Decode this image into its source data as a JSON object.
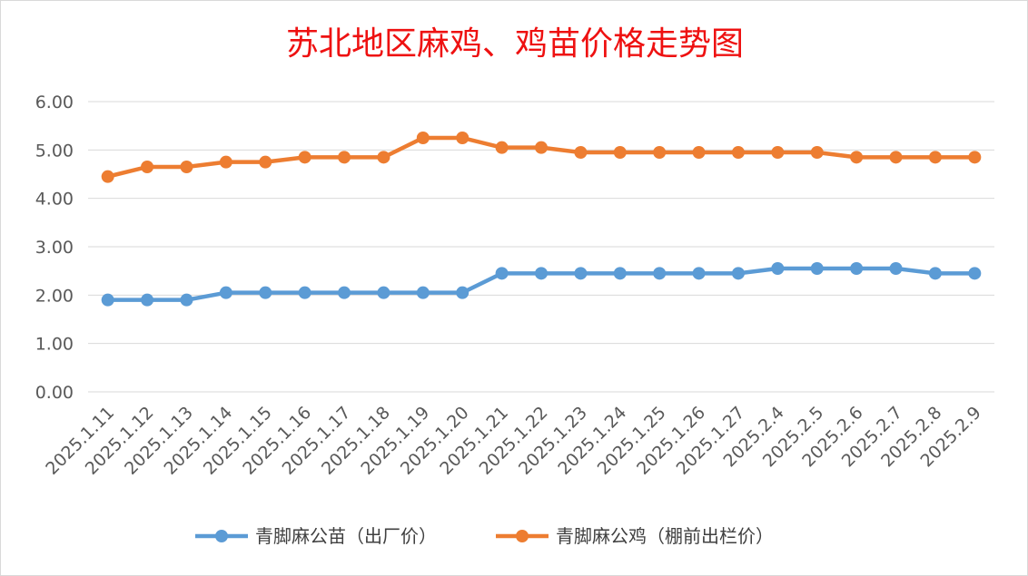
{
  "chart_data": {
    "type": "line",
    "title": "苏北地区麻鸡、鸡苗价格走势图",
    "categories": [
      "2025.1.11",
      "2025.1.12",
      "2025.1.13",
      "2025.1.14",
      "2025.1.15",
      "2025.1.16",
      "2025.1.17",
      "2025.1.18",
      "2025.1.19",
      "2025.1.20",
      "2025.1.21",
      "2025.1.22",
      "2025.1.23",
      "2025.1.24",
      "2025.1.25",
      "2025.1.26",
      "2025.1.27",
      "2025.2.4",
      "2025.2.5",
      "2025.2.6",
      "2025.2.7",
      "2025.2.8",
      "2025.2.9"
    ],
    "y_ticks": [
      "0.00",
      "1.00",
      "2.00",
      "3.00",
      "4.00",
      "5.00",
      "6.00"
    ],
    "ylim": [
      0,
      6
    ],
    "grid": true,
    "legend_position": "bottom",
    "series": [
      {
        "name": "青脚麻公苗（出厂价）",
        "color": "#5b9bd5",
        "values": [
          1.9,
          1.9,
          1.9,
          2.05,
          2.05,
          2.05,
          2.05,
          2.05,
          2.05,
          2.05,
          2.45,
          2.45,
          2.45,
          2.45,
          2.45,
          2.45,
          2.45,
          2.55,
          2.55,
          2.55,
          2.55,
          2.45,
          2.45
        ]
      },
      {
        "name": "青脚麻公鸡（棚前出栏价）",
        "color": "#ed7d31",
        "values": [
          4.45,
          4.65,
          4.65,
          4.75,
          4.75,
          4.85,
          4.85,
          4.85,
          5.25,
          5.25,
          5.05,
          5.05,
          4.95,
          4.95,
          4.95,
          4.95,
          4.95,
          4.95,
          4.95,
          4.85,
          4.85,
          4.85,
          4.85
        ]
      }
    ]
  }
}
